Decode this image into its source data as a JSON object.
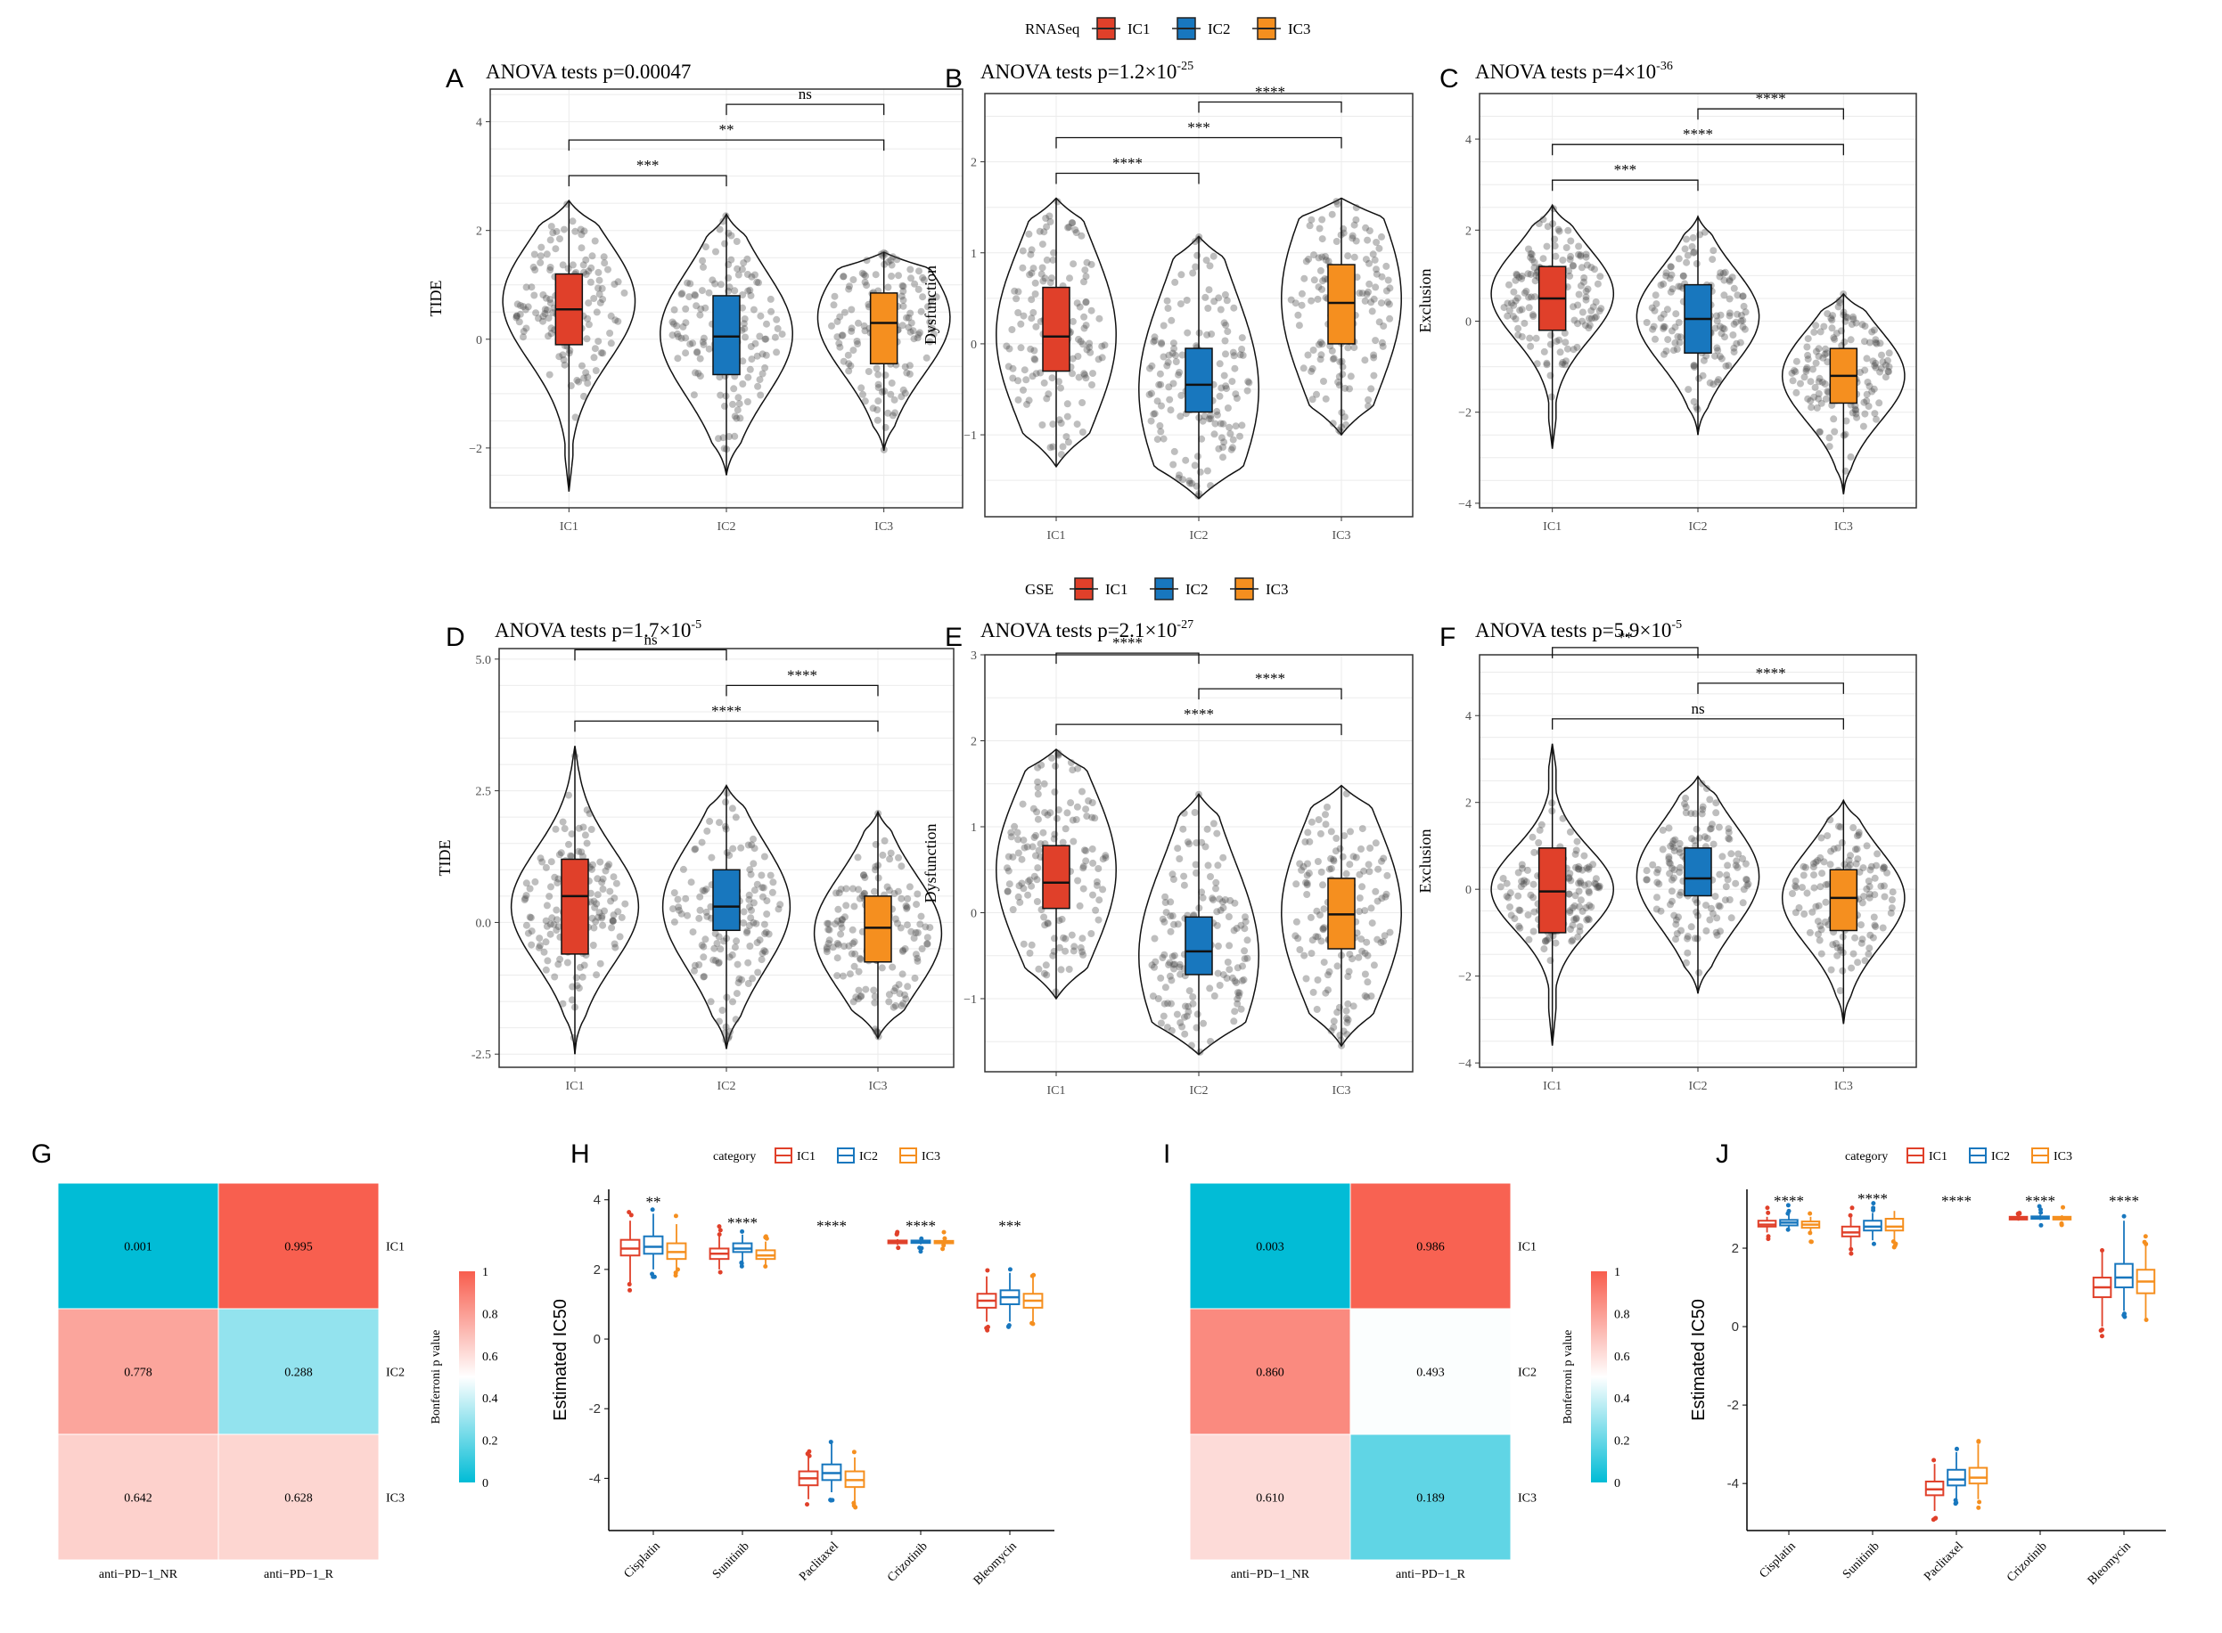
{
  "colors": {
    "IC1": "#e0402a",
    "IC2": "#1877be",
    "IC3": "#f58f1f",
    "hm_high": "#f85d4d",
    "hm_mid": "#ffffff",
    "hm_low": "#00bcd6"
  },
  "legends": [
    {
      "title": "RNASeq",
      "items": [
        "IC1",
        "IC2",
        "IC3"
      ]
    },
    {
      "title": "GSE",
      "items": [
        "IC1",
        "IC2",
        "IC3"
      ]
    }
  ],
  "chart_data": [
    {
      "panel": "A",
      "type": "violin",
      "title": {
        "prefix": "ANOVA tests p=0.00047",
        "sup": ""
      },
      "ylabel": "TIDE",
      "categories": [
        "IC1",
        "IC2",
        "IC3"
      ],
      "ylim": [
        -3.1,
        4.6
      ],
      "yticks": [
        -2,
        0,
        2,
        4
      ],
      "groups": [
        {
          "name": "IC1",
          "min": -2.8,
          "max": 2.55,
          "q1": -0.1,
          "median": 0.55,
          "q3": 1.2,
          "peak": 0.7,
          "spread": 1.1
        },
        {
          "name": "IC2",
          "min": -2.5,
          "max": 2.3,
          "q1": -0.65,
          "median": 0.05,
          "q3": 0.8,
          "peak": 0.1,
          "spread": 1.15
        },
        {
          "name": "IC3",
          "min": -2.05,
          "max": 1.6,
          "q1": -0.45,
          "median": 0.3,
          "q3": 0.85,
          "peak": 0.4,
          "spread": 1.05
        }
      ],
      "brackets": [
        {
          "from": 0,
          "to": 1,
          "level": 0,
          "label": "***"
        },
        {
          "from": 0,
          "to": 2,
          "level": 1,
          "label": "**"
        },
        {
          "from": 1,
          "to": 2,
          "level": 2,
          "label": "ns"
        }
      ]
    },
    {
      "panel": "B",
      "type": "violin",
      "title": {
        "prefix": "ANOVA tests p=1.2",
        "sup": "-25"
      },
      "ylabel": "Dysfunction",
      "categories": [
        "IC1",
        "IC2",
        "IC3"
      ],
      "ylim": [
        -1.9,
        2.75
      ],
      "yticks": [
        -1,
        0,
        1,
        2
      ],
      "groups": [
        {
          "name": "IC1",
          "min": -1.35,
          "max": 1.6,
          "q1": -0.3,
          "median": 0.08,
          "q3": 0.62,
          "peak": 0.1,
          "spread": 1.0
        },
        {
          "name": "IC2",
          "min": -1.7,
          "max": 1.18,
          "q1": -0.75,
          "median": -0.45,
          "q3": -0.05,
          "peak": -0.5,
          "spread": 1.1
        },
        {
          "name": "IC3",
          "min": -1.0,
          "max": 1.6,
          "q1": 0.0,
          "median": 0.45,
          "q3": 0.87,
          "peak": 0.5,
          "spread": 1.05
        }
      ],
      "brackets": [
        {
          "from": 0,
          "to": 1,
          "level": 0,
          "label": "****"
        },
        {
          "from": 0,
          "to": 2,
          "level": 1,
          "label": "***"
        },
        {
          "from": 1,
          "to": 2,
          "level": 2,
          "label": "****"
        }
      ]
    },
    {
      "panel": "C",
      "type": "violin",
      "title": {
        "prefix": "ANOVA tests p=4",
        "sup": "-36"
      },
      "ylabel": "Exclusion",
      "categories": [
        "IC1",
        "IC2",
        "IC3"
      ],
      "ylim": [
        -4.1,
        5.0
      ],
      "yticks": [
        -4,
        -2,
        0,
        2,
        4
      ],
      "groups": [
        {
          "name": "IC1",
          "min": -2.8,
          "max": 2.55,
          "q1": -0.2,
          "median": 0.5,
          "q3": 1.2,
          "peak": 0.6,
          "spread": 1.0
        },
        {
          "name": "IC2",
          "min": -2.5,
          "max": 2.3,
          "q1": -0.7,
          "median": 0.05,
          "q3": 0.8,
          "peak": 0.1,
          "spread": 1.05
        },
        {
          "name": "IC3",
          "min": -3.8,
          "max": 0.6,
          "q1": -1.8,
          "median": -1.2,
          "q3": -0.6,
          "peak": -1.2,
          "spread": 1.0
        }
      ],
      "brackets": [
        {
          "from": 0,
          "to": 1,
          "level": 0,
          "label": "***"
        },
        {
          "from": 0,
          "to": 2,
          "level": 1,
          "label": "****"
        },
        {
          "from": 1,
          "to": 2,
          "level": 2,
          "label": "****"
        }
      ]
    },
    {
      "panel": "D",
      "type": "violin",
      "title": {
        "prefix": "ANOVA tests p=1.7",
        "sup": "-5"
      },
      "ylabel": "TIDE",
      "categories": [
        "IC1",
        "IC2",
        "IC3"
      ],
      "ylim": [
        -2.75,
        5.2
      ],
      "yticks": [
        -2.5,
        0.0,
        2.5,
        5.0
      ],
      "ytick_labels": [
        "-2.5",
        "0.0",
        "2.5",
        "5.0"
      ],
      "groups": [
        {
          "name": "IC1",
          "min": -2.5,
          "max": 3.35,
          "q1": -0.6,
          "median": 0.5,
          "q3": 1.2,
          "peak": 0.3,
          "spread": 1.1
        },
        {
          "name": "IC2",
          "min": -2.4,
          "max": 2.6,
          "q1": -0.15,
          "median": 0.3,
          "q3": 1.0,
          "peak": 0.3,
          "spread": 1.2
        },
        {
          "name": "IC3",
          "min": -2.2,
          "max": 2.1,
          "q1": -0.75,
          "median": -0.1,
          "q3": 0.5,
          "peak": -0.2,
          "spread": 1.1
        }
      ],
      "brackets": [
        {
          "from": 0,
          "to": 2,
          "level": 0,
          "label": "****"
        },
        {
          "from": 1,
          "to": 2,
          "level": 1,
          "label": "****"
        },
        {
          "from": 0,
          "to": 1,
          "level": 2,
          "label": "ns"
        }
      ]
    },
    {
      "panel": "E",
      "type": "violin",
      "title": {
        "prefix": "ANOVA tests p=2.1",
        "sup": "-27"
      },
      "ylabel": "Dysfunction",
      "categories": [
        "IC1",
        "IC2",
        "IC3"
      ],
      "ylim": [
        -1.85,
        3.0
      ],
      "yticks": [
        -1,
        0,
        1,
        2,
        3
      ],
      "groups": [
        {
          "name": "IC1",
          "min": -1.0,
          "max": 1.9,
          "q1": 0.05,
          "median": 0.35,
          "q3": 0.78,
          "peak": 0.5,
          "spread": 1.0
        },
        {
          "name": "IC2",
          "min": -1.65,
          "max": 1.38,
          "q1": -0.72,
          "median": -0.45,
          "q3": -0.05,
          "peak": -0.5,
          "spread": 1.1
        },
        {
          "name": "IC3",
          "min": -1.55,
          "max": 1.48,
          "q1": -0.42,
          "median": -0.02,
          "q3": 0.4,
          "peak": 0.0,
          "spread": 1.05
        }
      ],
      "brackets": [
        {
          "from": 0,
          "to": 2,
          "level": 0,
          "label": "****"
        },
        {
          "from": 1,
          "to": 2,
          "level": 1,
          "label": "****"
        },
        {
          "from": 0,
          "to": 1,
          "level": 2,
          "label": "****"
        }
      ]
    },
    {
      "panel": "F",
      "type": "violin",
      "title": {
        "prefix": "ANOVA tests p=5.9",
        "sup": "-5"
      },
      "ylabel": "Exclusion",
      "categories": [
        "IC1",
        "IC2",
        "IC3"
      ],
      "ylim": [
        -4.1,
        5.4
      ],
      "yticks": [
        -4,
        -2,
        0,
        2,
        4
      ],
      "groups": [
        {
          "name": "IC1",
          "min": -3.6,
          "max": 3.35,
          "q1": -1.0,
          "median": -0.05,
          "q3": 0.95,
          "peak": 0.0,
          "spread": 0.95
        },
        {
          "name": "IC2",
          "min": -2.4,
          "max": 2.6,
          "q1": -0.15,
          "median": 0.25,
          "q3": 0.95,
          "peak": 0.3,
          "spread": 1.2
        },
        {
          "name": "IC3",
          "min": -3.1,
          "max": 2.05,
          "q1": -0.95,
          "median": -0.2,
          "q3": 0.45,
          "peak": -0.2,
          "spread": 1.1
        }
      ],
      "brackets": [
        {
          "from": 0,
          "to": 2,
          "level": 0,
          "label": "ns"
        },
        {
          "from": 1,
          "to": 2,
          "level": 1,
          "label": "****"
        },
        {
          "from": 0,
          "to": 1,
          "level": 2,
          "label": "**"
        }
      ]
    },
    {
      "panel": "G",
      "type": "heatmap",
      "rows": [
        "IC1",
        "IC2",
        "IC3"
      ],
      "cols": [
        "anti−PD−1_NR",
        "anti−PD−1_R"
      ],
      "values": [
        [
          0.001,
          0.995
        ],
        [
          0.778,
          0.288
        ],
        [
          0.642,
          0.628
        ]
      ],
      "labels": [
        [
          "0.001",
          "0.995"
        ],
        [
          "0.778",
          "0.288"
        ],
        [
          "0.642",
          "0.628"
        ]
      ],
      "legend_title": "Bonferroni p value",
      "legend_ticks": [
        "0",
        "0.2",
        "0.4",
        "0.6",
        "0.8",
        "1"
      ]
    },
    {
      "panel": "H",
      "type": "boxplot",
      "ylabel": "Estimated IC50",
      "legend_title": "category",
      "series": [
        "IC1",
        "IC2",
        "IC3"
      ],
      "categories": [
        "Cisplatin",
        "Sunitinib",
        "Paclitaxel",
        "Crizotinib",
        "Bleomycin"
      ],
      "ylim": [
        -5.5,
        4.3
      ],
      "yticks": [
        -4,
        -2,
        0,
        2,
        4
      ],
      "stars": [
        "**",
        "****",
        "****",
        "****",
        "***"
      ],
      "boxes": [
        [
          {
            "min": 1.6,
            "q1": 2.4,
            "med": 2.6,
            "q3": 2.85,
            "max": 3.4
          },
          {
            "min": 2.0,
            "q1": 2.45,
            "med": 2.65,
            "q3": 2.95,
            "max": 3.6
          },
          {
            "min": 2.0,
            "q1": 2.3,
            "med": 2.5,
            "q3": 2.75,
            "max": 3.3
          }
        ],
        [
          {
            "min": 2.0,
            "q1": 2.3,
            "med": 2.45,
            "q3": 2.6,
            "max": 3.0
          },
          {
            "min": 2.2,
            "q1": 2.5,
            "med": 2.6,
            "q3": 2.75,
            "max": 3.0
          },
          {
            "min": 2.1,
            "q1": 2.3,
            "med": 2.4,
            "q3": 2.55,
            "max": 2.8
          }
        ],
        [
          {
            "min": -4.6,
            "q1": -4.2,
            "med": -4.0,
            "q3": -3.8,
            "max": -3.4
          },
          {
            "min": -4.4,
            "q1": -4.05,
            "med": -3.85,
            "q3": -3.6,
            "max": -3.0
          },
          {
            "min": -4.7,
            "q1": -4.25,
            "med": -4.05,
            "q3": -3.8,
            "max": -3.4
          }
        ],
        [
          {
            "min": 2.7,
            "q1": 2.75,
            "med": 2.8,
            "q3": 2.83,
            "max": 2.87
          },
          {
            "min": 2.72,
            "q1": 2.76,
            "med": 2.8,
            "q3": 2.83,
            "max": 2.87
          },
          {
            "min": 2.7,
            "q1": 2.75,
            "med": 2.78,
            "q3": 2.82,
            "max": 2.86
          }
        ],
        [
          {
            "min": 0.5,
            "q1": 0.9,
            "med": 1.1,
            "q3": 1.3,
            "max": 1.8
          },
          {
            "min": 0.5,
            "q1": 1.0,
            "med": 1.2,
            "q3": 1.4,
            "max": 1.9
          },
          {
            "min": 0.5,
            "q1": 0.9,
            "med": 1.1,
            "q3": 1.3,
            "max": 1.8
          }
        ]
      ]
    },
    {
      "panel": "I",
      "type": "heatmap",
      "rows": [
        "IC1",
        "IC2",
        "IC3"
      ],
      "cols": [
        "anti−PD−1_NR",
        "anti−PD−1_R"
      ],
      "values": [
        [
          0.003,
          0.986
        ],
        [
          0.86,
          0.493
        ],
        [
          0.61,
          0.189
        ]
      ],
      "labels": [
        [
          "0.003",
          "0.986"
        ],
        [
          "0.860",
          "0.493"
        ],
        [
          "0.610",
          "0.189"
        ]
      ],
      "legend_title": "Bonferroni p value",
      "legend_ticks": [
        "0",
        "0.2",
        "0.4",
        "0.6",
        "0.8",
        "1"
      ]
    },
    {
      "panel": "J",
      "type": "boxplot",
      "ylabel": "Estimated IC50",
      "legend_title": "category",
      "series": [
        "IC1",
        "IC2",
        "IC3"
      ],
      "categories": [
        "Cisplatin",
        "Sunitinib",
        "Paclitaxel",
        "Crizotinib",
        "Bleomycin"
      ],
      "ylim": [
        -5.2,
        3.5
      ],
      "yticks": [
        -4,
        -2,
        0,
        2
      ],
      "stars": [
        "****",
        "****",
        "****",
        "****",
        "****"
      ],
      "boxes": [
        [
          {
            "min": 2.4,
            "q1": 2.55,
            "med": 2.6,
            "q3": 2.7,
            "max": 2.8
          },
          {
            "min": 2.5,
            "q1": 2.58,
            "med": 2.65,
            "q3": 2.72,
            "max": 2.85
          },
          {
            "min": 2.4,
            "q1": 2.52,
            "med": 2.6,
            "q3": 2.68,
            "max": 2.8
          }
        ],
        [
          {
            "min": 2.0,
            "q1": 2.3,
            "med": 2.4,
            "q3": 2.55,
            "max": 2.8
          },
          {
            "min": 2.2,
            "q1": 2.45,
            "med": 2.55,
            "q3": 2.7,
            "max": 2.9
          },
          {
            "min": 2.2,
            "q1": 2.45,
            "med": 2.55,
            "q3": 2.75,
            "max": 2.95
          }
        ],
        [
          {
            "min": -4.7,
            "q1": -4.3,
            "med": -4.15,
            "q3": -3.95,
            "max": -3.5
          },
          {
            "min": -4.4,
            "q1": -4.05,
            "med": -3.9,
            "q3": -3.65,
            "max": -3.2
          },
          {
            "min": -4.4,
            "q1": -4.0,
            "med": -3.85,
            "q3": -3.6,
            "max": -3.0
          }
        ],
        [
          {
            "min": 2.7,
            "q1": 2.73,
            "med": 2.77,
            "q3": 2.8,
            "max": 2.84
          },
          {
            "min": 2.72,
            "q1": 2.75,
            "med": 2.78,
            "q3": 2.81,
            "max": 2.85
          },
          {
            "min": 2.7,
            "q1": 2.73,
            "med": 2.77,
            "q3": 2.8,
            "max": 2.84
          }
        ],
        [
          {
            "min": 0.0,
            "q1": 0.75,
            "med": 1.0,
            "q3": 1.25,
            "max": 1.9
          },
          {
            "min": 0.4,
            "q1": 1.0,
            "med": 1.25,
            "q3": 1.6,
            "max": 2.7
          },
          {
            "min": 0.2,
            "q1": 0.85,
            "med": 1.15,
            "q3": 1.45,
            "max": 2.1
          }
        ]
      ]
    }
  ]
}
